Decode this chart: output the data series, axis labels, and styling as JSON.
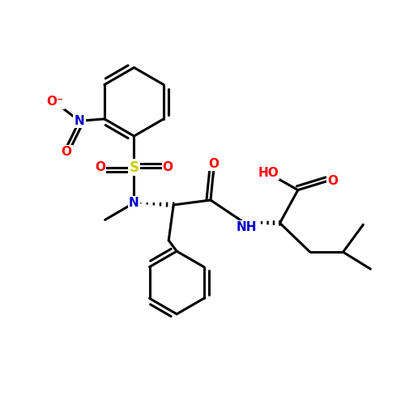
{
  "bg_color": "#ffffff",
  "atom_colors": {
    "C": "#000000",
    "N": "#0000cc",
    "O": "#ff0000",
    "S": "#cccc00",
    "H": "#000000"
  },
  "bond_color": "#000000",
  "bond_width": 2.2,
  "figsize": [
    5.0,
    5.0
  ],
  "dpi": 100,
  "xlim": [
    0,
    10
  ],
  "ylim": [
    0,
    10
  ]
}
